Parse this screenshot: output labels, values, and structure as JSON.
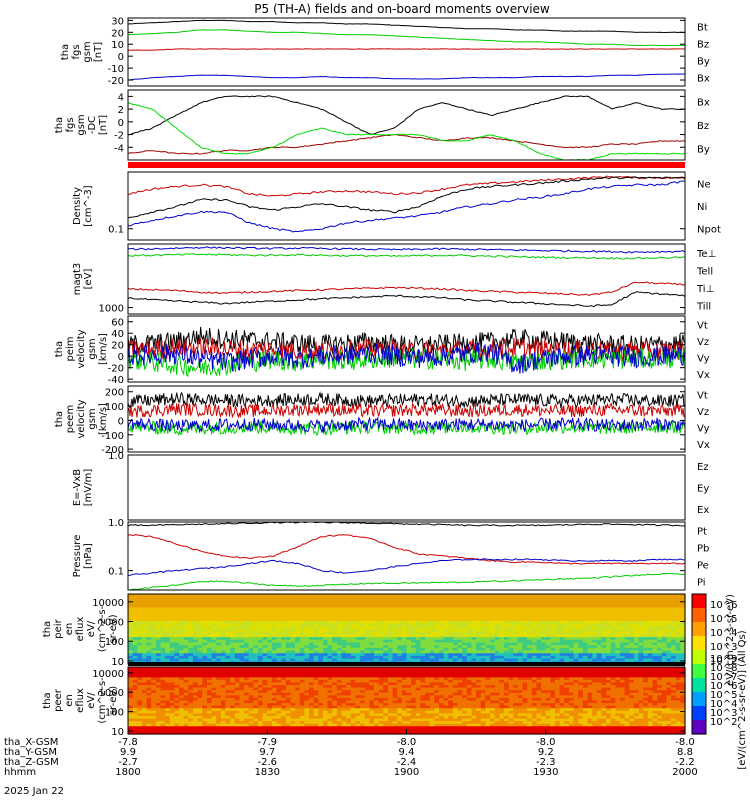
{
  "title": "P5 (TH-A) fields and on-board moments overview",
  "chart_data": [
    {
      "type": "line",
      "id": "p1",
      "ylabel": [
        "tha",
        "fgs",
        "gsm",
        "[nT]"
      ],
      "ylim": [
        -25,
        32
      ],
      "yticks": [
        {
          "v": 30,
          "t": "30"
        },
        {
          "v": 20,
          "t": "20"
        },
        {
          "v": 10,
          "t": "10"
        },
        {
          "v": 0,
          "t": "0"
        },
        {
          "v": -10,
          "t": "-10"
        },
        {
          "v": -20,
          "t": "-20"
        }
      ],
      "series": [
        {
          "name": "Bt",
          "color": "#000000",
          "values": [
            27,
            28,
            29,
            30,
            30,
            29,
            29,
            28,
            28,
            27,
            27,
            26,
            25,
            24,
            23,
            23,
            22,
            22,
            21,
            21,
            21,
            20,
            20,
            20
          ]
        },
        {
          "name": "Bz",
          "color": "#cc0000",
          "values": [
            5,
            5,
            6,
            6,
            6,
            6,
            6,
            6,
            6,
            6,
            6,
            6,
            6,
            6,
            6,
            6,
            6,
            6,
            6,
            6,
            6,
            6,
            6,
            6
          ]
        },
        {
          "name": "By",
          "color": "#00cc00",
          "values": [
            18,
            19,
            20,
            22,
            22,
            21,
            20,
            20,
            19,
            18,
            18,
            17,
            16,
            15,
            14,
            13,
            12,
            12,
            11,
            10,
            10,
            9,
            9,
            9
          ]
        },
        {
          "name": "Bx",
          "color": "#0000cc",
          "values": [
            -20,
            -18,
            -17,
            -16,
            -16,
            -17,
            -18,
            -18,
            -17,
            -18,
            -18,
            -19,
            -19,
            -19,
            -18,
            -18,
            -18,
            -17,
            -17,
            -17,
            -16,
            -16,
            -15,
            -15
          ]
        }
      ]
    },
    {
      "type": "line",
      "id": "p2",
      "ylabel": [
        "tha",
        "fgs",
        "gsm",
        "-DC",
        "[nT]"
      ],
      "ylim": [
        -6,
        5
      ],
      "yticks": [
        {
          "v": 4,
          "t": "4"
        },
        {
          "v": 2,
          "t": "2"
        },
        {
          "v": 0,
          "t": "0"
        },
        {
          "v": -2,
          "t": "-2"
        },
        {
          "v": -4,
          "t": "-4"
        }
      ],
      "series": [
        {
          "name": "Bx",
          "color": "#000000",
          "values": [
            -2,
            -1,
            1,
            3,
            4,
            4,
            4,
            3,
            2,
            0,
            -2,
            -1,
            2,
            3,
            2,
            1,
            2,
            3,
            4,
            4,
            2,
            3,
            2,
            2
          ]
        },
        {
          "name": "Bz",
          "color": "#990000",
          "values": [
            -5,
            -4.5,
            -5,
            -5,
            -4.5,
            -4.5,
            -4,
            -4,
            -3.5,
            -3,
            -2.5,
            -2,
            -2.5,
            -3,
            -2.5,
            -2.5,
            -3,
            -3.5,
            -4,
            -4,
            -3.5,
            -3.5,
            -3,
            -3
          ]
        },
        {
          "name": "By",
          "color": "#00dd00",
          "values": [
            3,
            2,
            -1,
            -4,
            -5,
            -5,
            -4,
            -2,
            -1,
            -2,
            -2,
            -2,
            -2,
            -3,
            -3,
            -2,
            -3,
            -5,
            -6,
            -6,
            -5,
            -5,
            -5,
            -5
          ]
        }
      ]
    },
    {
      "type": "line",
      "id": "p3",
      "ylabel": [
        "Density",
        "[cm^-3]"
      ],
      "log": true,
      "ylim": [
        0.07,
        0.6
      ],
      "yticks": [
        {
          "v": 0.1,
          "t": "0.1"
        }
      ],
      "series": [
        {
          "name": "Ne",
          "color": "#cc0000",
          "values": [
            0.3,
            0.35,
            0.38,
            0.4,
            0.38,
            0.3,
            0.28,
            0.3,
            0.32,
            0.33,
            0.32,
            0.3,
            0.31,
            0.35,
            0.4,
            0.42,
            0.44,
            0.46,
            0.48,
            0.5,
            0.52,
            0.5,
            0.5,
            0.5
          ]
        },
        {
          "name": "Ni",
          "color": "#000000",
          "values": [
            0.14,
            0.17,
            0.2,
            0.25,
            0.25,
            0.2,
            0.18,
            0.2,
            0.22,
            0.2,
            0.18,
            0.17,
            0.2,
            0.28,
            0.35,
            0.38,
            0.4,
            0.42,
            0.45,
            0.48,
            0.5,
            0.5,
            0.5,
            0.5
          ]
        },
        {
          "name": "Npot",
          "color": "#0000cc",
          "values": [
            0.11,
            0.13,
            0.15,
            0.17,
            0.17,
            0.12,
            0.1,
            0.09,
            0.1,
            0.12,
            0.13,
            0.14,
            0.15,
            0.17,
            0.2,
            0.22,
            0.25,
            0.27,
            0.3,
            0.35,
            0.38,
            0.4,
            0.4,
            0.45
          ]
        }
      ]
    },
    {
      "type": "line",
      "id": "p4",
      "ylabel": [
        "magt3",
        "[eV]"
      ],
      "log": true,
      "ylim": [
        800,
        9000
      ],
      "yticks": [
        {
          "v": 1000,
          "t": "1000"
        }
      ],
      "series": [
        {
          "name": "Te⊥",
          "color": "#cc0000",
          "values": [
            1900,
            1850,
            1800,
            1700,
            1650,
            1700,
            1750,
            1800,
            1850,
            1900,
            1950,
            2000,
            1950,
            1900,
            1800,
            1750,
            1700,
            1650,
            1600,
            1550,
            1700,
            2400,
            2300,
            2200
          ]
        },
        {
          "name": "Tell",
          "color": "#000000",
          "values": [
            1400,
            1300,
            1250,
            1200,
            1150,
            1200,
            1250,
            1300,
            1350,
            1400,
            1450,
            1500,
            1450,
            1400,
            1300,
            1250,
            1200,
            1150,
            1100,
            1050,
            1100,
            1700,
            1600,
            1500
          ]
        },
        {
          "name": "Ti⊥",
          "color": "#0000cc",
          "values": [
            7500,
            7600,
            7800,
            8000,
            7900,
            7800,
            7700,
            7800,
            7700,
            7600,
            7500,
            7400,
            7500,
            7600,
            7500,
            7400,
            7300,
            7200,
            7100,
            7000,
            6900,
            6800,
            6900,
            7000
          ]
        },
        {
          "name": "Till",
          "color": "#00cc00",
          "values": [
            6000,
            6100,
            6200,
            6300,
            6200,
            6100,
            6100,
            6200,
            6100,
            6000,
            6000,
            5900,
            6000,
            6100,
            6000,
            5900,
            5800,
            5700,
            5600,
            5600,
            5500,
            5500,
            5600,
            5700
          ]
        }
      ]
    },
    {
      "type": "line",
      "id": "p5",
      "ylabel": [
        "tha",
        "peim",
        "velocity",
        "gsm",
        "[km/s]"
      ],
      "ylim": [
        -45,
        70
      ],
      "yticks": [
        {
          "v": 60,
          "t": "60"
        },
        {
          "v": 40,
          "t": "40"
        },
        {
          "v": 20,
          "t": "20"
        },
        {
          "v": 0,
          "t": "0"
        },
        {
          "v": -20,
          "t": "-20"
        },
        {
          "v": -40,
          "t": "-40"
        }
      ],
      "series": [
        {
          "name": "Vt",
          "color": "#000000",
          "values": [
            20,
            22,
            25,
            35,
            30,
            28,
            25,
            22,
            20,
            22,
            25,
            20,
            18,
            20,
            22,
            25,
            30,
            28,
            25,
            22,
            20,
            18,
            20,
            22
          ]
        },
        {
          "name": "Vz",
          "color": "#cc0000",
          "values": [
            10,
            12,
            15,
            15,
            12,
            10,
            12,
            10,
            8,
            10,
            12,
            10,
            8,
            10,
            10,
            12,
            15,
            12,
            10,
            10,
            8,
            10,
            8,
            10
          ]
        },
        {
          "name": "Vy",
          "color": "#00cc00",
          "values": [
            -5,
            -10,
            -15,
            -20,
            -15,
            -10,
            -5,
            -10,
            -5,
            -8,
            -5,
            -3,
            -5,
            -5,
            -8,
            -5,
            -10,
            -8,
            -5,
            -3,
            -5,
            -5,
            -3,
            -5
          ]
        },
        {
          "name": "Vx",
          "color": "#0000cc",
          "values": [
            0,
            2,
            5,
            -5,
            -10,
            -5,
            0,
            -5,
            0,
            2,
            5,
            0,
            -3,
            0,
            5,
            8,
            -15,
            -5,
            0,
            2,
            0,
            -2,
            0,
            2
          ]
        }
      ]
    },
    {
      "type": "line",
      "id": "p6",
      "ylabel": [
        "tha",
        "peem",
        "velocity",
        "gsm",
        "[km/s]"
      ],
      "ylim": [
        -220,
        240
      ],
      "yticks": [
        {
          "v": 200,
          "t": "200"
        },
        {
          "v": 100,
          "t": "100"
        },
        {
          "v": 0,
          "t": "0"
        },
        {
          "v": -100,
          "t": "-100"
        },
        {
          "v": -200,
          "t": "-200"
        }
      ],
      "series": [
        {
          "name": "Vt",
          "color": "#000000",
          "values": [
            130,
            140,
            150,
            145,
            140,
            135,
            140,
            145,
            150,
            140,
            135,
            140,
            145,
            140,
            135,
            140,
            145,
            140,
            135,
            140,
            145,
            140,
            135,
            140
          ]
        },
        {
          "name": "Vz",
          "color": "#cc0000",
          "values": [
            60,
            70,
            80,
            75,
            70,
            65,
            70,
            75,
            80,
            70,
            65,
            70,
            75,
            70,
            65,
            70,
            75,
            70,
            65,
            70,
            75,
            70,
            65,
            70
          ]
        },
        {
          "name": "Vy",
          "color": "#00cc00",
          "values": [
            -40,
            -50,
            -60,
            -55,
            -50,
            -45,
            -50,
            -55,
            -60,
            -50,
            -45,
            -50,
            -55,
            -50,
            -45,
            -50,
            -55,
            -50,
            -45,
            -50,
            -55,
            -50,
            -45,
            -50
          ]
        },
        {
          "name": "Vx",
          "color": "#0000cc",
          "values": [
            -20,
            -30,
            -40,
            -35,
            -30,
            -25,
            -30,
            -35,
            -40,
            -30,
            -25,
            -30,
            -35,
            -30,
            -25,
            -30,
            -35,
            -30,
            -25,
            -30,
            -35,
            -30,
            -25,
            -30
          ]
        }
      ]
    },
    {
      "type": "line",
      "id": "p7",
      "ylabel": [
        "E=-VxB",
        "[mV/m]"
      ],
      "ylim": [
        0,
        1.0
      ],
      "yticks": [
        {
          "v": 1.0,
          "t": "1.0"
        }
      ],
      "series": [
        {
          "name": "Ez",
          "color": "#cc0000",
          "values": []
        },
        {
          "name": "Ey",
          "color": "#00cc00",
          "values": []
        },
        {
          "name": "Ex",
          "color": "#0000cc",
          "values": []
        }
      ]
    },
    {
      "type": "line",
      "id": "p8",
      "ylabel": [
        "Pressure",
        "[nPa]"
      ],
      "log": true,
      "ylim": [
        0.04,
        1.0
      ],
      "yticks": [
        {
          "v": 1.0,
          "t": "1.0"
        },
        {
          "v": 0.1,
          "t": "0.1"
        }
      ],
      "series": [
        {
          "name": "Pt",
          "color": "#000000",
          "values": [
            0.85,
            0.85,
            0.88,
            0.9,
            0.92,
            0.95,
            0.97,
            0.98,
            0.98,
            0.97,
            0.95,
            0.92,
            0.9,
            0.88,
            0.85,
            0.85,
            0.85,
            0.85,
            0.87,
            0.9,
            0.9,
            0.88,
            0.86,
            0.85
          ]
        },
        {
          "name": "Pb",
          "color": "#cc0000",
          "values": [
            0.55,
            0.5,
            0.35,
            0.25,
            0.2,
            0.18,
            0.2,
            0.3,
            0.5,
            0.55,
            0.45,
            0.3,
            0.22,
            0.2,
            0.18,
            0.16,
            0.15,
            0.15,
            0.14,
            0.14,
            0.14,
            0.14,
            0.14,
            0.14
          ]
        },
        {
          "name": "Pe",
          "color": "#00cc00",
          "values": [
            0.04,
            0.045,
            0.05,
            0.06,
            0.06,
            0.055,
            0.05,
            0.048,
            0.05,
            0.052,
            0.055,
            0.055,
            0.056,
            0.057,
            0.058,
            0.06,
            0.062,
            0.065,
            0.068,
            0.07,
            0.075,
            0.08,
            0.085,
            0.085
          ]
        },
        {
          "name": "Pi",
          "color": "#0000cc",
          "values": [
            0.08,
            0.09,
            0.1,
            0.11,
            0.12,
            0.14,
            0.16,
            0.14,
            0.1,
            0.09,
            0.1,
            0.12,
            0.14,
            0.16,
            0.17,
            0.17,
            0.17,
            0.17,
            0.16,
            0.16,
            0.16,
            0.16,
            0.17,
            0.17
          ]
        }
      ]
    },
    {
      "type": "heatmap",
      "id": "p9",
      "ylabel": [
        "tha",
        "peir",
        "en",
        "eflux",
        "eV/",
        "(cm^2-s-",
        "sr-eV)"
      ],
      "log": true,
      "ylim": [
        7,
        25000
      ],
      "yticks": [
        {
          "v": 10000,
          "t": "10000"
        },
        {
          "v": 1000,
          "t": "1000"
        },
        {
          "v": 100,
          "t": "100"
        },
        {
          "v": 10,
          "t": "10"
        }
      ]
    },
    {
      "type": "heatmap",
      "id": "p10",
      "ylabel": [
        "tha",
        "peer",
        "en",
        "eflux",
        "eV/",
        "(cm^2-s-",
        "sr-eV)"
      ],
      "log": true,
      "ylim": [
        7,
        20000
      ],
      "yticks": [
        {
          "v": 10000,
          "t": "10000"
        },
        {
          "v": 1000,
          "t": "1000"
        },
        {
          "v": 100,
          "t": "100"
        },
        {
          "v": 10,
          "t": "10"
        }
      ]
    }
  ],
  "colorbar": {
    "label": "[eV/(cm^2-s-sr-eV)] (All Qs)",
    "lower_label": "eV/(cm^2-s-sr-eV)",
    "ticks_top": [
      "10^6",
      "10^5",
      "10^4",
      "10^3",
      "10^2"
    ],
    "ticks_bot": [
      "10^9",
      "10^8",
      "10^7",
      "10^6",
      "10^5",
      "10^4",
      "10^3",
      "10^2"
    ]
  },
  "xaxis": {
    "rows": [
      {
        "label": "tha_X-GSM",
        "values": [
          "-7.8",
          "-7.9",
          "-8.0",
          "-8.0",
          "-8.0"
        ]
      },
      {
        "label": "tha_Y-GSM",
        "values": [
          "9.9",
          "9.7",
          "9.4",
          "9.2",
          "8.8"
        ]
      },
      {
        "label": "tha_Z-GSM",
        "values": [
          "-2.7",
          "-2.6",
          "-2.4",
          "-2.3",
          "-2.2"
        ]
      },
      {
        "label": "hhmm",
        "values": [
          "1800",
          "1830",
          "1900",
          "1930",
          "2000"
        ]
      }
    ],
    "date": "2025 Jan 22"
  }
}
